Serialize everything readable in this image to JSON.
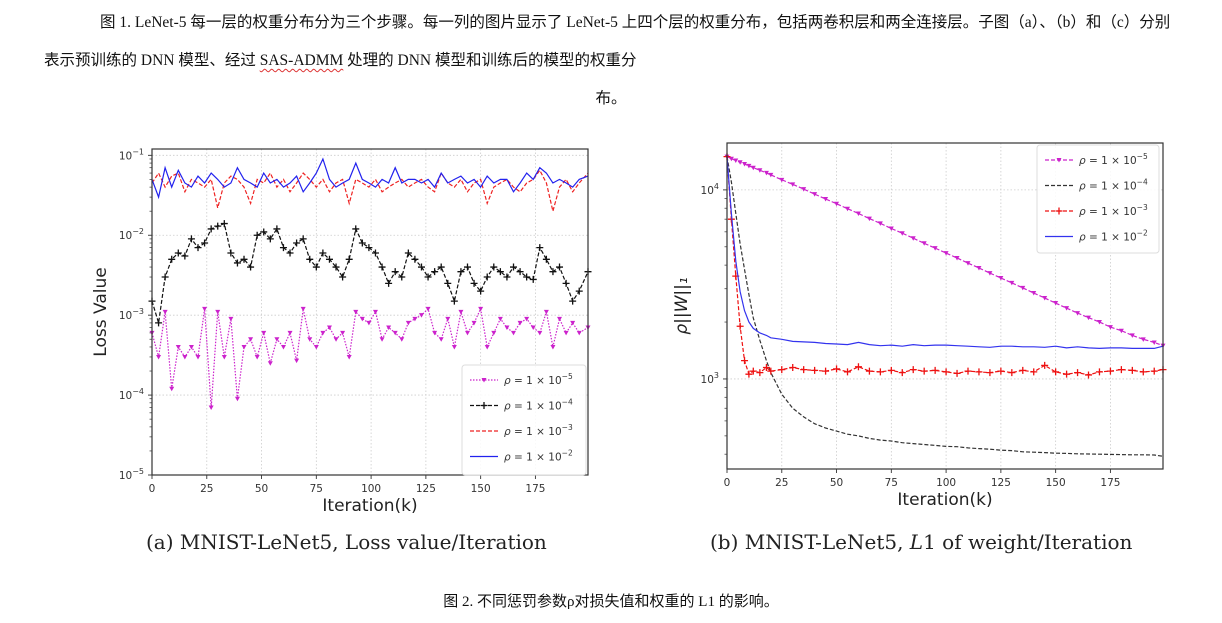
{
  "text": {
    "para1_a": "图 1. LeNet-5 每一层的权重分布分为三个步骤。每一列的图片显示了 LeNet-5 上四个层的权重分布，包括两卷积层和两全连接层。子图（a）、（b）和（c）分别表示预训练的 DNN 模型、经过 ",
    "para1_link": "SAS-ADMM",
    "para1_b": " 处理的 DNN 模型和训练后的模型的权重分",
    "para1_end": "布。",
    "subcap_a": "(a) MNIST-LeNet5, Loss value/Iteration",
    "subcap_b_pre": "(b) MNIST-LeNet5, ",
    "subcap_b_it": "L",
    "subcap_b_post": "1 of weight/Iteration",
    "figcap": "图 2.  不同惩罚参数ρ对损失值和权重的 L1 的影响。"
  },
  "chart_data": [
    {
      "type": "line",
      "title": "",
      "xlabel": "Iteration(k)",
      "ylabel": "Loss Value",
      "yscale": "log",
      "xlim": [
        0,
        199
      ],
      "ylim": [
        1e-05,
        0.12
      ],
      "xticks": [
        0,
        25,
        50,
        75,
        100,
        125,
        150,
        175
      ],
      "yticks": [
        {
          "v": 1e-05,
          "label": "10",
          "exp": "−5"
        },
        {
          "v": 0.0001,
          "label": "10",
          "exp": "−4"
        },
        {
          "v": 0.001,
          "label": "10",
          "exp": "−3"
        },
        {
          "v": 0.01,
          "label": "10",
          "exp": "−2"
        },
        {
          "v": 0.1,
          "label": "10",
          "exp": "−1"
        }
      ],
      "grid": true,
      "legend_position": "lower-right",
      "x": [
        0,
        3,
        6,
        9,
        12,
        15,
        18,
        21,
        24,
        27,
        30,
        33,
        36,
        39,
        42,
        45,
        48,
        51,
        54,
        57,
        60,
        63,
        66,
        69,
        72,
        75,
        78,
        81,
        84,
        87,
        90,
        93,
        96,
        99,
        102,
        105,
        108,
        111,
        114,
        117,
        120,
        123,
        126,
        129,
        132,
        135,
        138,
        141,
        144,
        147,
        150,
        153,
        156,
        159,
        162,
        165,
        168,
        171,
        174,
        177,
        180,
        183,
        186,
        189,
        192,
        195,
        199
      ],
      "series": [
        {
          "name": "ρ = 1 × 10⁻⁵",
          "legend_exp": "−5",
          "color": "#cc22cc",
          "style": "dotted",
          "marker": "tri_down",
          "values": [
            0.0006,
            0.0003,
            0.0011,
            0.00012,
            0.0004,
            0.0003,
            0.0004,
            0.0003,
            0.0012,
            7e-05,
            0.0011,
            0.0003,
            0.0009,
            9e-05,
            0.0004,
            0.0005,
            0.0003,
            0.0006,
            0.00025,
            0.0005,
            0.0004,
            0.0006,
            0.00027,
            0.0012,
            0.0005,
            0.0004,
            0.0006,
            0.0007,
            0.0005,
            0.0006,
            0.0003,
            0.0011,
            0.0009,
            0.0008,
            0.0011,
            0.0005,
            0.0007,
            0.0006,
            0.0005,
            0.0008,
            0.0009,
            0.001,
            0.0012,
            0.0006,
            0.0005,
            0.0009,
            0.0004,
            0.0011,
            0.0006,
            0.0008,
            0.0012,
            0.0004,
            0.0006,
            0.0009,
            0.0007,
            0.0006,
            0.0008,
            0.0009,
            0.0007,
            0.0006,
            0.0011,
            0.0004,
            0.0009,
            0.0006,
            0.0008,
            0.0006,
            0.0007
          ]
        },
        {
          "name": "ρ = 1 × 10⁻⁴",
          "legend_exp": "−4",
          "color": "#111111",
          "style": "dashed",
          "marker": "plus",
          "values": [
            0.0015,
            0.0008,
            0.003,
            0.005,
            0.006,
            0.0055,
            0.009,
            0.007,
            0.008,
            0.012,
            0.013,
            0.014,
            0.006,
            0.0045,
            0.005,
            0.004,
            0.01,
            0.011,
            0.009,
            0.012,
            0.007,
            0.006,
            0.008,
            0.009,
            0.005,
            0.004,
            0.006,
            0.005,
            0.004,
            0.003,
            0.005,
            0.012,
            0.008,
            0.007,
            0.006,
            0.004,
            0.0025,
            0.0035,
            0.003,
            0.006,
            0.005,
            0.004,
            0.003,
            0.0035,
            0.004,
            0.0025,
            0.0015,
            0.0035,
            0.004,
            0.0025,
            0.002,
            0.003,
            0.004,
            0.0035,
            0.003,
            0.004,
            0.0035,
            0.003,
            0.0028,
            0.007,
            0.005,
            0.0035,
            0.004,
            0.0025,
            0.0015,
            0.002,
            0.0035
          ]
        },
        {
          "name": "ρ = 1 × 10⁻³",
          "legend_exp": "−3",
          "color": "#ee2222",
          "style": "dashed",
          "marker": "none",
          "values": [
            0.045,
            0.06,
            0.04,
            0.055,
            0.06,
            0.035,
            0.05,
            0.045,
            0.04,
            0.05,
            0.022,
            0.045,
            0.055,
            0.05,
            0.04,
            0.025,
            0.05,
            0.045,
            0.06,
            0.04,
            0.05,
            0.035,
            0.045,
            0.06,
            0.05,
            0.04,
            0.05,
            0.035,
            0.045,
            0.05,
            0.025,
            0.05,
            0.045,
            0.04,
            0.05,
            0.035,
            0.04,
            0.045,
            0.05,
            0.04,
            0.045,
            0.05,
            0.04,
            0.035,
            0.06,
            0.045,
            0.04,
            0.05,
            0.035,
            0.045,
            0.05,
            0.025,
            0.04,
            0.045,
            0.05,
            0.04,
            0.035,
            0.045,
            0.05,
            0.065,
            0.045,
            0.02,
            0.04,
            0.05,
            0.035,
            0.045,
            0.06
          ]
        },
        {
          "name": "ρ = 1 × 10⁻²",
          "legend_exp": "−2",
          "color": "#2222ee",
          "style": "solid",
          "marker": "none",
          "values": [
            0.05,
            0.03,
            0.07,
            0.04,
            0.065,
            0.045,
            0.04,
            0.055,
            0.045,
            0.06,
            0.05,
            0.04,
            0.045,
            0.07,
            0.05,
            0.045,
            0.04,
            0.06,
            0.045,
            0.05,
            0.04,
            0.045,
            0.055,
            0.035,
            0.045,
            0.06,
            0.09,
            0.05,
            0.04,
            0.045,
            0.05,
            0.08,
            0.05,
            0.045,
            0.04,
            0.05,
            0.045,
            0.07,
            0.045,
            0.05,
            0.05,
            0.045,
            0.05,
            0.04,
            0.06,
            0.045,
            0.05,
            0.055,
            0.045,
            0.05,
            0.04,
            0.055,
            0.045,
            0.05,
            0.05,
            0.035,
            0.045,
            0.06,
            0.05,
            0.07,
            0.06,
            0.045,
            0.05,
            0.045,
            0.04,
            0.05,
            0.055
          ]
        }
      ]
    },
    {
      "type": "line",
      "title": "",
      "xlabel": "Iteration(k)",
      "ylabel": "ρ||W||₁",
      "yscale": "log",
      "xlim": [
        0,
        199
      ],
      "ylim": [
        334,
        17700
      ],
      "xticks": [
        0,
        25,
        50,
        75,
        100,
        125,
        150,
        175
      ],
      "yticks": [
        {
          "v": 1000,
          "label": "10",
          "exp": "3"
        },
        {
          "v": 10000,
          "label": "10",
          "exp": "4"
        }
      ],
      "grid": true,
      "legend_position": "top-right",
      "x": [
        0,
        2,
        4,
        6,
        8,
        10,
        12,
        15,
        18,
        20,
        25,
        30,
        35,
        40,
        45,
        50,
        55,
        60,
        65,
        70,
        75,
        80,
        85,
        90,
        95,
        100,
        105,
        110,
        115,
        120,
        125,
        130,
        135,
        140,
        145,
        150,
        155,
        160,
        165,
        170,
        175,
        180,
        185,
        190,
        195,
        199
      ],
      "series": [
        {
          "name": "ρ = 1 × 10⁻⁵",
          "legend_exp": "−5",
          "color": "#cc22cc",
          "style": "dashed",
          "marker": "tri_down",
          "values": [
            15000,
            14600,
            14300,
            14000,
            13700,
            13400,
            13100,
            12700,
            12300,
            12000,
            11300,
            10700,
            10100,
            9500,
            8950,
            8450,
            7950,
            7500,
            7050,
            6650,
            6250,
            5900,
            5550,
            5220,
            4920,
            4630,
            4360,
            4100,
            3860,
            3630,
            3420,
            3220,
            3030,
            2850,
            2680,
            2520,
            2370,
            2230,
            2110,
            2000,
            1880,
            1800,
            1700,
            1620,
            1560,
            1500
          ]
        },
        {
          "name": "ρ = 1 × 10⁻⁴",
          "legend_exp": "−4",
          "color": "#333333",
          "style": "dashed",
          "marker": "none",
          "values": [
            15000,
            11000,
            7500,
            5200,
            3800,
            2800,
            2100,
            1600,
            1250,
            1080,
            830,
            700,
            630,
            580,
            550,
            530,
            510,
            500,
            485,
            475,
            470,
            460,
            455,
            450,
            445,
            440,
            438,
            432,
            428,
            425,
            420,
            418,
            412,
            410,
            408,
            405,
            404,
            402,
            401,
            400,
            399,
            398,
            397,
            397,
            396,
            390
          ]
        },
        {
          "name": "ρ = 1 × 10⁻³",
          "legend_exp": "−3",
          "color": "#ee1111",
          "style": "dashed",
          "marker": "plus",
          "values": [
            15000,
            7000,
            3500,
            1900,
            1250,
            1060,
            1100,
            1080,
            1150,
            1100,
            1120,
            1150,
            1120,
            1110,
            1100,
            1130,
            1090,
            1160,
            1100,
            1090,
            1110,
            1080,
            1120,
            1100,
            1110,
            1090,
            1070,
            1100,
            1090,
            1080,
            1100,
            1080,
            1110,
            1090,
            1180,
            1090,
            1060,
            1080,
            1050,
            1090,
            1100,
            1120,
            1110,
            1090,
            1100,
            1120
          ]
        },
        {
          "name": "ρ = 1 × 10⁻²",
          "legend_exp": "−2",
          "color": "#3333ee",
          "style": "solid",
          "marker": "none",
          "values": [
            15000,
            7500,
            4200,
            2900,
            2300,
            2000,
            1850,
            1750,
            1700,
            1650,
            1620,
            1580,
            1570,
            1560,
            1540,
            1530,
            1520,
            1560,
            1520,
            1500,
            1510,
            1490,
            1520,
            1500,
            1510,
            1510,
            1500,
            1490,
            1480,
            1470,
            1490,
            1490,
            1480,
            1480,
            1470,
            1490,
            1460,
            1480,
            1460,
            1450,
            1460,
            1460,
            1450,
            1450,
            1450,
            1490
          ]
        }
      ]
    }
  ]
}
